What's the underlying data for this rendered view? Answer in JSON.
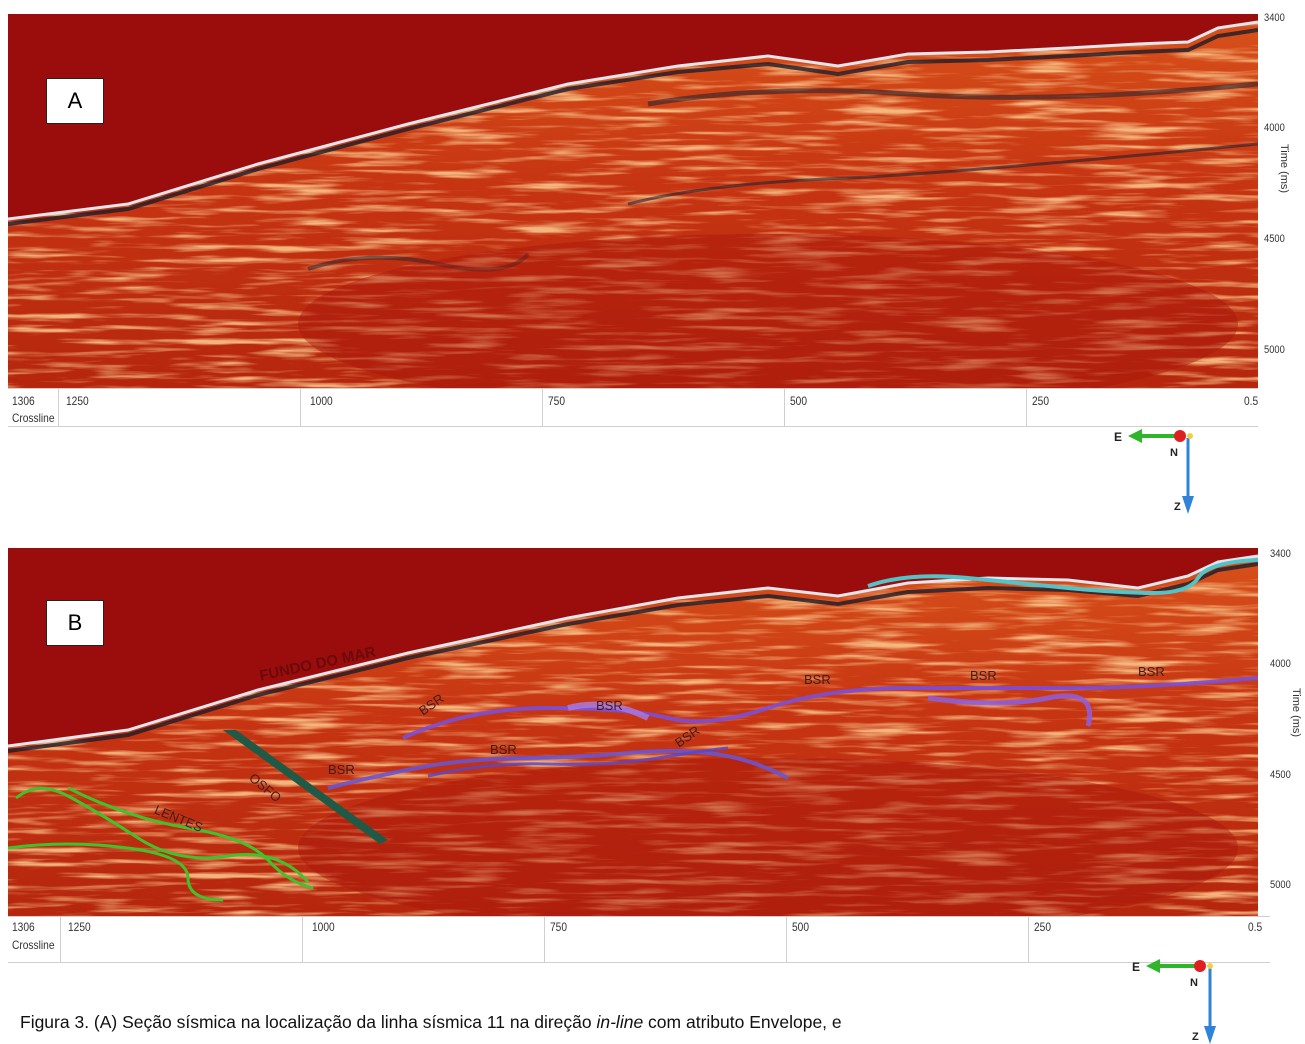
{
  "panels": [
    {
      "letter": "A",
      "x_ticks": [
        "1250",
        "1000",
        "750",
        "500",
        "250",
        "0.5"
      ],
      "x_first": "1306",
      "x_axis_name": "Crossline",
      "y_ticks": [
        "3400",
        "4000",
        "4500",
        "5000"
      ],
      "y_unit": "Time (ms)"
    },
    {
      "letter": "B",
      "x_ticks": [
        "1250",
        "1000",
        "750",
        "500",
        "250",
        "0.5"
      ],
      "x_first": "1306",
      "x_axis_name": "Crossline",
      "y_ticks": [
        "3400",
        "4000",
        "4500",
        "5000"
      ],
      "y_unit": "Time (ms)",
      "annotations": {
        "seafloor": "FUNDO DO MAR",
        "bsr": "BSR",
        "osfo": "OSFO",
        "lentes": "LENTES"
      }
    }
  ],
  "compass": {
    "east": "E",
    "north": "N",
    "down": "Z"
  },
  "colors": {
    "sea": "#9b0d0d",
    "seismic_red": "#c8300f",
    "seismic_orange": "#e3772a",
    "bsr": "#7b4fd6",
    "osfo": "#1e5a46",
    "lentes": "#3fc22a",
    "seafloor_cyan": "#54c3c8"
  },
  "caption": {
    "prefix": "Figura 3. (A) Seção sísmica na localização da linha sísmica 11 na direção ",
    "italic": "in-line",
    "suffix": " com atributo Envelope, e"
  }
}
